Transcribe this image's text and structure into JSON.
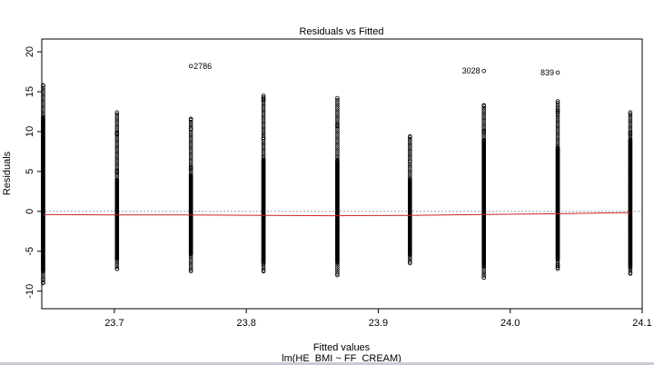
{
  "chart_data": {
    "type": "scatter",
    "title": "Residuals vs Fitted",
    "xlabel": "Fitted values",
    "subtitle": "lm(HE_BMI ~ FF_CREAM)",
    "ylabel": "Residuals",
    "xlim": [
      23.645,
      24.1
    ],
    "ylim": [
      -12.2,
      21.6
    ],
    "x_ticks": [
      23.7,
      23.8,
      23.9,
      24.0,
      24.1
    ],
    "x_tick_labels": [
      "23.7",
      "23.8",
      "23.9",
      "24.0",
      "24.1"
    ],
    "y_ticks": [
      -10,
      -5,
      0,
      5,
      10,
      15,
      20
    ],
    "y_tick_labels": [
      "-10",
      "-5",
      "0",
      "5",
      "10",
      "15",
      "20"
    ],
    "reference_line": 0,
    "point_color": "#000000",
    "smooth_color": "#cc2222",
    "reference_color": "#a0a0a0",
    "columns": [
      {
        "x": 23.646,
        "min": -9.0,
        "max": 15.8,
        "dense_min": -7.5,
        "dense_max": 11.8
      },
      {
        "x": 23.702,
        "min": -7.2,
        "max": 12.4,
        "dense_min": -6.0,
        "dense_max": 4.0
      },
      {
        "x": 23.758,
        "min": -7.5,
        "max": 11.6,
        "dense_min": -5.5,
        "dense_max": 4.5
      },
      {
        "x": 23.813,
        "min": -7.5,
        "max": 14.5,
        "dense_min": -6.5,
        "dense_max": 6.5
      },
      {
        "x": 23.869,
        "min": -8.0,
        "max": 14.2,
        "dense_min": -6.5,
        "dense_max": 6.5
      },
      {
        "x": 23.924,
        "min": -6.5,
        "max": 9.4,
        "dense_min": -5.5,
        "dense_max": 4.0
      },
      {
        "x": 23.98,
        "min": -8.3,
        "max": 13.3,
        "dense_min": -7.0,
        "dense_max": 9.0
      },
      {
        "x": 24.036,
        "min": -7.2,
        "max": 13.8,
        "dense_min": -6.0,
        "dense_max": 8.0
      },
      {
        "x": 24.091,
        "min": -7.8,
        "max": 12.4,
        "dense_min": -7.0,
        "dense_max": 9.0
      }
    ],
    "outliers": [
      {
        "x": 23.758,
        "y": 18.2,
        "label": "2786",
        "side": "right"
      },
      {
        "x": 23.98,
        "y": 17.6,
        "label": "3028",
        "side": "left"
      },
      {
        "x": 24.036,
        "y": 17.4,
        "label": "839",
        "side": "left"
      }
    ],
    "smooth": [
      {
        "x": 23.646,
        "y": -0.4
      },
      {
        "x": 23.702,
        "y": -0.45
      },
      {
        "x": 23.758,
        "y": -0.45
      },
      {
        "x": 23.813,
        "y": -0.5
      },
      {
        "x": 23.869,
        "y": -0.55
      },
      {
        "x": 23.924,
        "y": -0.5
      },
      {
        "x": 23.98,
        "y": -0.4
      },
      {
        "x": 24.036,
        "y": -0.3
      },
      {
        "x": 24.091,
        "y": -0.15
      }
    ]
  }
}
